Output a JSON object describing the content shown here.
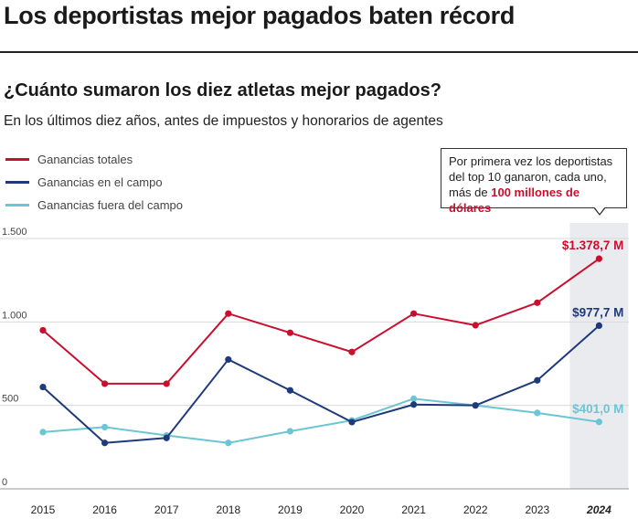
{
  "header": {
    "title": "Los deportistas mejor pagados baten récord",
    "subtitle": "¿Cuánto sumaron los diez atletas mejor pagados?",
    "description": "En los últimos diez años, antes de impuestos y honorarios de agentes"
  },
  "colors": {
    "total": "#c8102e",
    "field": "#1f3a7a",
    "offfield": "#6cc5d4",
    "grid": "#d9d9d9",
    "highlight_band": "#e9ebee"
  },
  "callout": {
    "line1": "Por primera vez los deportistas",
    "line2": "del top 10 ganaron, cada uno,",
    "line3_prefix": "más de ",
    "line3_highlight": "100 millones de dólares"
  },
  "chart_data": {
    "type": "line",
    "title": "¿Cuánto sumaron los diez atletas mejor pagados?",
    "x": [
      "2015",
      "2016",
      "2017",
      "2018",
      "2019",
      "2020",
      "2021",
      "2022",
      "2023",
      "2024"
    ],
    "highlight_category": "2024",
    "ylim": [
      0,
      1500
    ],
    "yticks": [
      0,
      500,
      1000,
      1500
    ],
    "ytick_labels": [
      "0",
      "500",
      "1.000",
      "1.500"
    ],
    "grid": true,
    "legend_position": "top-left",
    "series": [
      {
        "key": "total",
        "name": "Ganancias totales",
        "values": [
          950,
          630,
          630,
          1050,
          935,
          820,
          1050,
          980,
          1115,
          1378.7
        ],
        "end_label": "$1.378,7 M"
      },
      {
        "key": "field",
        "name": "Ganancias en el campo",
        "values": [
          610,
          275,
          305,
          775,
          590,
          400,
          505,
          500,
          650,
          977.7
        ],
        "end_label": "$977,7 M"
      },
      {
        "key": "offfield",
        "name": "Ganancias fuera del campo",
        "values": [
          340,
          370,
          320,
          275,
          345,
          410,
          540,
          500,
          455,
          401.0
        ],
        "end_label": "$401,0 M"
      }
    ]
  }
}
